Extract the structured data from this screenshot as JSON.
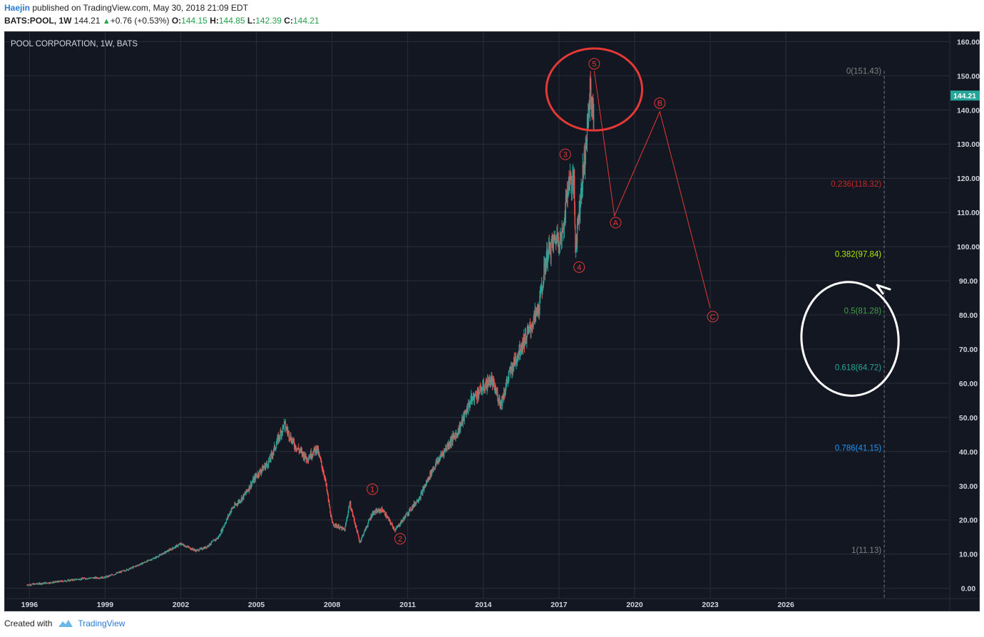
{
  "header": {
    "author": "Haejin",
    "published_text": "published on TradingView.com, May 30, 2018 21:09 EDT",
    "symbol": "BATS:POOL, 1W",
    "last": "144.21",
    "change": "+0.76 (+0.53%)",
    "open_label": "O:",
    "open": "144.15",
    "high_label": "H:",
    "high": "144.85",
    "low_label": "L:",
    "low": "142.39",
    "close_label": "C:",
    "close": "144.21"
  },
  "footer": {
    "created_with": "Created with",
    "brand": "TradingView"
  },
  "chart_data": {
    "type": "candlestick",
    "title": "POOL CORPORATION, 1W, BATS",
    "xlim": [
      1995.0,
      2032.5
    ],
    "ylim": [
      -3,
      163
    ],
    "x_ticks": [
      "1996",
      "1999",
      "2002",
      "2005",
      "2008",
      "2011",
      "2014",
      "2017",
      "2020",
      "2023",
      "2026"
    ],
    "y_ticks": [
      "0.00",
      "10.00",
      "20.00",
      "30.00",
      "40.00",
      "50.00",
      "60.00",
      "70.00",
      "80.00",
      "90.00",
      "100.00",
      "110.00",
      "120.00",
      "130.00",
      "140.00",
      "150.00",
      "160.00"
    ],
    "last_price_label": "144.21",
    "colors": {
      "up": "#26a69a",
      "down": "#ef5350",
      "wave": "#e53935",
      "price_tag": "#26a69a",
      "annotation_white": "#ffffff"
    },
    "price_path": [
      [
        1995.9,
        1.0
      ],
      [
        1997.0,
        1.8
      ],
      [
        1998.2,
        2.9
      ],
      [
        1999.0,
        3.2
      ],
      [
        2000.0,
        5.8
      ],
      [
        2001.0,
        9.0
      ],
      [
        2002.0,
        13.0
      ],
      [
        2002.6,
        11.0
      ],
      [
        2003.0,
        12.0
      ],
      [
        2003.5,
        15.0
      ],
      [
        2004.0,
        23.0
      ],
      [
        2004.5,
        27.0
      ],
      [
        2005.0,
        33.0
      ],
      [
        2005.5,
        37.0
      ],
      [
        2006.1,
        48.0
      ],
      [
        2006.5,
        42.0
      ],
      [
        2007.0,
        38.0
      ],
      [
        2007.4,
        41.0
      ],
      [
        2007.7,
        33.0
      ],
      [
        2008.0,
        19.0
      ],
      [
        2008.5,
        17.0
      ],
      [
        2008.7,
        25.0
      ],
      [
        2009.1,
        13.5
      ],
      [
        2009.6,
        22.0
      ],
      [
        2010.0,
        23.0
      ],
      [
        2010.5,
        17.0
      ],
      [
        2011.0,
        22.0
      ],
      [
        2011.5,
        27.0
      ],
      [
        2012.0,
        35.0
      ],
      [
        2012.6,
        42.0
      ],
      [
        2013.0,
        46.0
      ],
      [
        2013.5,
        55.0
      ],
      [
        2013.9,
        58.0
      ],
      [
        2014.3,
        61.0
      ],
      [
        2014.7,
        54.0
      ],
      [
        2015.0,
        62.0
      ],
      [
        2015.5,
        71.0
      ],
      [
        2015.8,
        75.0
      ],
      [
        2016.2,
        82.0
      ],
      [
        2016.5,
        97.0
      ],
      [
        2016.9,
        103.0
      ],
      [
        2017.1,
        102.0
      ],
      [
        2017.4,
        120.0
      ],
      [
        2017.6,
        118.0
      ],
      [
        2017.65,
        100.0
      ],
      [
        2017.9,
        118.0
      ],
      [
        2018.1,
        132.0
      ],
      [
        2018.25,
        147.0
      ],
      [
        2018.35,
        137.0
      ],
      [
        2018.4,
        144.21
      ]
    ],
    "wave_labels": [
      {
        "label": "1",
        "x": 2009.6,
        "y": 29.0
      },
      {
        "label": "2",
        "x": 2010.7,
        "y": 14.5
      },
      {
        "label": "3",
        "x": 2017.25,
        "y": 127.0
      },
      {
        "label": "4",
        "x": 2017.8,
        "y": 94.0
      },
      {
        "label": "5",
        "x": 2018.4,
        "y": 153.5
      },
      {
        "label": "A",
        "x": 2019.25,
        "y": 107.0
      },
      {
        "label": "B",
        "x": 2021.0,
        "y": 142.0
      },
      {
        "label": "C",
        "x": 2023.1,
        "y": 79.5
      }
    ],
    "projection_path": [
      [
        2018.4,
        151.4
      ],
      [
        2019.2,
        109.0
      ],
      [
        2021.0,
        139.5
      ],
      [
        2023.0,
        82.0
      ]
    ],
    "highlight_circle": {
      "cx": 2018.4,
      "cy": 146.0,
      "rx_years": 1.9,
      "ry_price": 12.0,
      "color": "#e53935"
    },
    "fib_levels": [
      {
        "label": "0(151.43)",
        "value": 151.43,
        "color": "#808080"
      },
      {
        "label": "0.236(118.32)",
        "value": 118.32,
        "color": "#c62828"
      },
      {
        "label": "0.382(97.84)",
        "value": 97.84,
        "color": "#aeea00"
      },
      {
        "label": "0.5(81.28)",
        "value": 81.28,
        "color": "#43a047"
      },
      {
        "label": "0.618(64.72)",
        "value": 64.72,
        "color": "#26a69a"
      },
      {
        "label": "0.786(41.15)",
        "value": 41.15,
        "color": "#2196f3"
      },
      {
        "label": "1(11.13)",
        "value": 11.13,
        "color": "#808080"
      }
    ],
    "fib_line_x": 2029.9
  }
}
